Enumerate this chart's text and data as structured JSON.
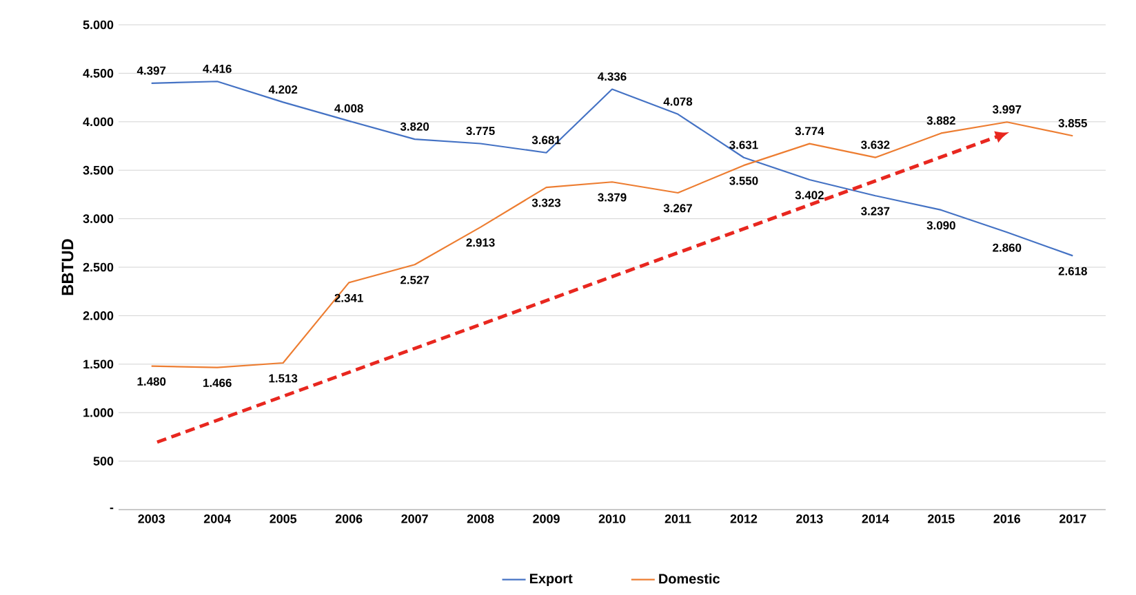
{
  "chart_data": {
    "type": "line",
    "ylabel": "BBTUD",
    "categories": [
      "2003",
      "2004",
      "2005",
      "2006",
      "2007",
      "2008",
      "2009",
      "2010",
      "2011",
      "2012",
      "2013",
      "2014",
      "2015",
      "2016",
      "2017"
    ],
    "series": [
      {
        "name": "Export",
        "color": "#4472c4",
        "values": [
          4397,
          4416,
          4202,
          4008,
          3820,
          3775,
          3681,
          4336,
          4078,
          3631,
          3402,
          3237,
          3090,
          2860,
          2618
        ],
        "value_labels": [
          "4.397",
          "4.416",
          "4.202",
          "4.008",
          "3.820",
          "3.775",
          "3.681",
          "4.336",
          "4.078",
          "3.631",
          "3.402",
          "3.237",
          "3.090",
          "2.860",
          "2.618"
        ]
      },
      {
        "name": "Domestic",
        "color": "#ed7d31",
        "values": [
          1480,
          1466,
          1513,
          2341,
          2527,
          2913,
          3323,
          3379,
          3267,
          3550,
          3774,
          3632,
          3882,
          3997,
          3855
        ],
        "value_labels": [
          "1.480",
          "1.466",
          "1.513",
          "2.341",
          "2.527",
          "2.913",
          "3.323",
          "3.379",
          "3.267",
          "3.550",
          "3.774",
          "3.632",
          "3.882",
          "3.997",
          "3.855"
        ]
      }
    ],
    "ylim": [
      0,
      5000
    ],
    "yticks": [
      {
        "value": 0,
        "label": "-"
      },
      {
        "value": 500,
        "label": "500"
      },
      {
        "value": 1000,
        "label": "1.000"
      },
      {
        "value": 1500,
        "label": "1.500"
      },
      {
        "value": 2000,
        "label": "2.000"
      },
      {
        "value": 2500,
        "label": "2.500"
      },
      {
        "value": 3000,
        "label": "3.000"
      },
      {
        "value": 3500,
        "label": "3.500"
      },
      {
        "value": 4000,
        "label": "4.000"
      },
      {
        "value": 4500,
        "label": "4.500"
      },
      {
        "value": 5000,
        "label": "5.000"
      }
    ],
    "grid": "y",
    "legend": "bottom",
    "marker": "none"
  }
}
